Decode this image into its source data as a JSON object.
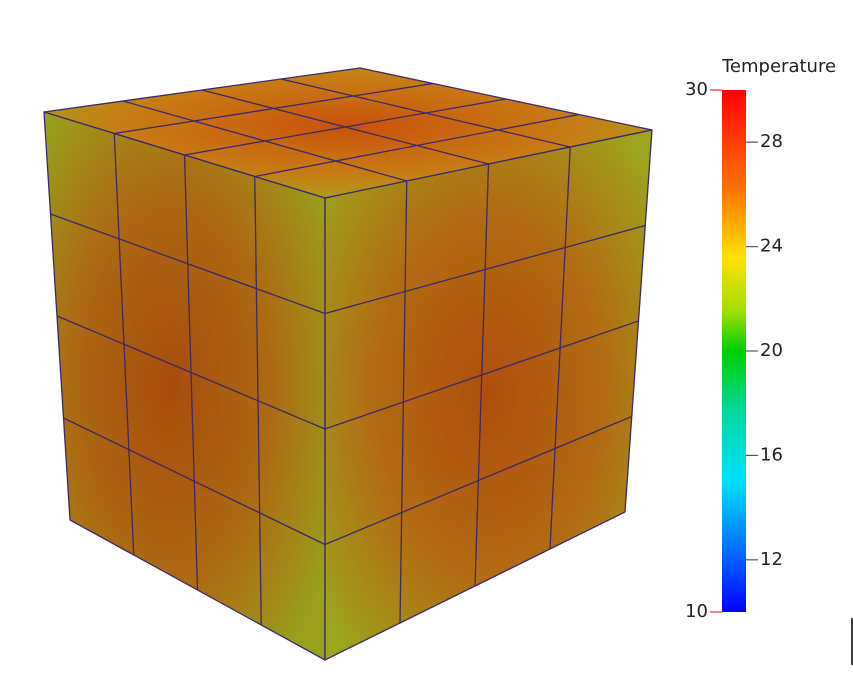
{
  "colorbar": {
    "title": "Temperature",
    "range": [
      10,
      30
    ],
    "ticks": [
      12,
      16,
      20,
      24,
      28
    ]
  }
}
